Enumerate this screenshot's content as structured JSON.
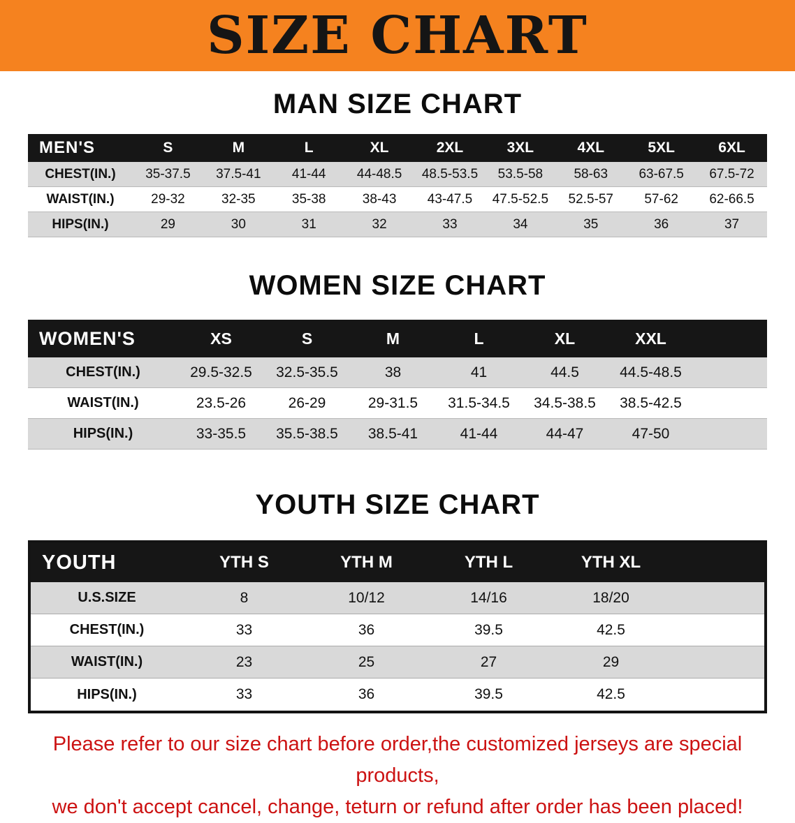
{
  "banner": {
    "title": "SIZE CHART"
  },
  "colors": {
    "banner_bg": "#f5821f",
    "header_bar": "#161616",
    "row_shade": "#d9d9d9",
    "notice_red": "#cc1212"
  },
  "sections": [
    {
      "id": "men",
      "heading": "MAN SIZE CHART",
      "table": {
        "header": [
          "MEN'S",
          "S",
          "M",
          "L",
          "XL",
          "2XL",
          "3XL",
          "4XL",
          "5XL",
          "6XL"
        ],
        "rows": [
          [
            "CHEST(IN.)",
            "35-37.5",
            "37.5-41",
            "41-44",
            "44-48.5",
            "48.5-53.5",
            "53.5-58",
            "58-63",
            "63-67.5",
            "67.5-72"
          ],
          [
            "WAIST(IN.)",
            "29-32",
            "32-35",
            "35-38",
            "38-43",
            "43-47.5",
            "47.5-52.5",
            "52.5-57",
            "57-62",
            "62-66.5"
          ],
          [
            "HIPS(IN.)",
            "29",
            "30",
            "31",
            "32",
            "33",
            "34",
            "35",
            "36",
            "37"
          ]
        ]
      }
    },
    {
      "id": "women",
      "heading": "WOMEN SIZE CHART",
      "table": {
        "header": [
          "WOMEN'S",
          "XS",
          "S",
          "M",
          "L",
          "XL",
          "XXL"
        ],
        "rows": [
          [
            "CHEST(IN.)",
            "29.5-32.5",
            "32.5-35.5",
            "38",
            "41",
            "44.5",
            "44.5-48.5"
          ],
          [
            "WAIST(IN.)",
            "23.5-26",
            "26-29",
            "29-31.5",
            "31.5-34.5",
            "34.5-38.5",
            "38.5-42.5"
          ],
          [
            "HIPS(IN.)",
            "33-35.5",
            "35.5-38.5",
            "38.5-41",
            "41-44",
            "44-47",
            "47-50"
          ]
        ]
      }
    },
    {
      "id": "youth",
      "heading": "YOUTH SIZE CHART",
      "table": {
        "header": [
          "YOUTH",
          "YTH S",
          "YTH M",
          "YTH L",
          "YTH XL"
        ],
        "rows": [
          [
            "U.S.SIZE",
            "8",
            "10/12",
            "14/16",
            "18/20"
          ],
          [
            "CHEST(IN.)",
            "33",
            "36",
            "39.5",
            "42.5"
          ],
          [
            "WAIST(IN.)",
            "23",
            "25",
            "27",
            "29"
          ],
          [
            "HIPS(IN.)",
            "33",
            "36",
            "39.5",
            "42.5"
          ]
        ]
      }
    }
  ],
  "notice": {
    "lines": [
      "Please refer to our size chart before order,the customized jerseys are special products,",
      "we don't accept cancel, change, teturn or refund after order has been placed!"
    ]
  }
}
